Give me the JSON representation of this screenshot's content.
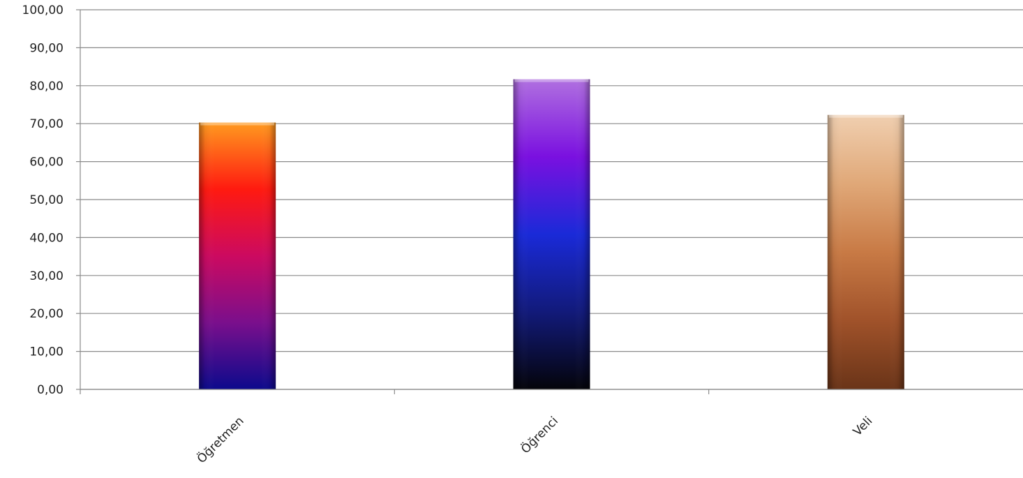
{
  "chart_data": {
    "type": "bar",
    "categories": [
      "Öğretmen",
      "Öğrenci",
      "Veli"
    ],
    "values": [
      70.3,
      81.7,
      72.3
    ],
    "ylim": [
      0,
      100
    ],
    "ytick_labels": [
      "0,00",
      "10,00",
      "20,00",
      "30,00",
      "40,00",
      "50,00",
      "60,00",
      "70,00",
      "80,00",
      "90,00",
      "100,00"
    ],
    "grid": true,
    "legend": "none",
    "colors": {
      "Öğretmen": [
        "#ff9a1f",
        "#ff1a10",
        "#cc0a60",
        "#7a0f8c",
        "#0c0a8c"
      ],
      "Öğrenci": [
        "#b070e0",
        "#7a10e0",
        "#1a2ad8",
        "#121a7a",
        "#04040a"
      ],
      "Veli": [
        "#f0cfb0",
        "#e0a878",
        "#c87a45",
        "#a0522a",
        "#6a3418"
      ]
    }
  }
}
